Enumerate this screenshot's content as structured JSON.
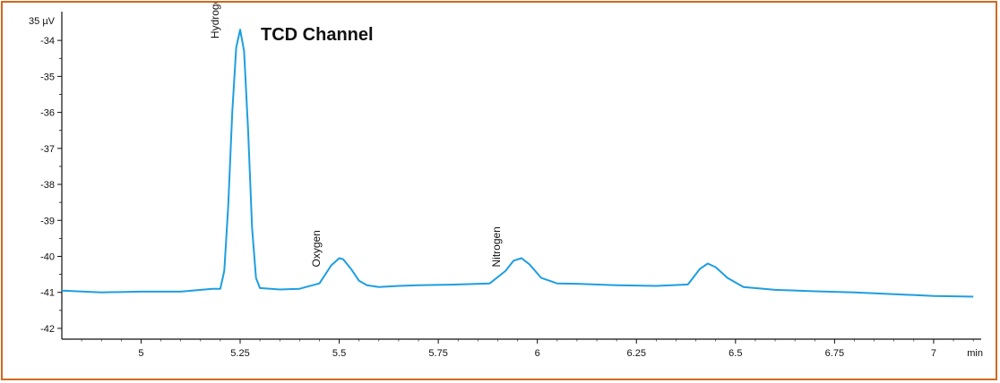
{
  "chart_data": {
    "type": "line",
    "title": "TCD Channel",
    "unit_label": "35 µV",
    "x_unit": "min",
    "xlim": [
      4.8,
      7.12
    ],
    "ylim": [
      -42.3,
      -33.3
    ],
    "x_ticks": [
      {
        "value": 5,
        "label": "5"
      },
      {
        "value": 5.25,
        "label": "5.25"
      },
      {
        "value": 5.5,
        "label": "5.5"
      },
      {
        "value": 5.75,
        "label": "5.75"
      },
      {
        "value": 6,
        "label": "6"
      },
      {
        "value": 6.25,
        "label": "6.25"
      },
      {
        "value": 6.5,
        "label": "6.5"
      },
      {
        "value": 6.75,
        "label": "6.75"
      },
      {
        "value": 7,
        "label": "7"
      }
    ],
    "y_ticks": [
      {
        "value": -34,
        "label": "-34"
      },
      {
        "value": -35,
        "label": "-35"
      },
      {
        "value": -36,
        "label": "-36"
      },
      {
        "value": -37,
        "label": "-37"
      },
      {
        "value": -38,
        "label": "-38"
      },
      {
        "value": -39,
        "label": "-39"
      },
      {
        "value": -40,
        "label": "-40"
      },
      {
        "value": -41,
        "label": "-41"
      },
      {
        "value": -42,
        "label": "-42"
      }
    ],
    "series": [
      {
        "color": "#1e9ee0",
        "x": [
          4.8,
          4.9,
          5.0,
          5.1,
          5.18,
          5.2,
          5.21,
          5.22,
          5.23,
          5.24,
          5.25,
          5.26,
          5.27,
          5.28,
          5.29,
          5.3,
          5.35,
          5.4,
          5.45,
          5.48,
          5.5,
          5.51,
          5.53,
          5.55,
          5.57,
          5.6,
          5.65,
          5.7,
          5.8,
          5.88,
          5.92,
          5.94,
          5.96,
          5.98,
          6.01,
          6.05,
          6.1,
          6.2,
          6.3,
          6.38,
          6.41,
          6.43,
          6.45,
          6.48,
          6.52,
          6.6,
          6.7,
          6.8,
          6.9,
          7.0,
          7.1
        ],
        "y": [
          -40.95,
          -41.0,
          -40.98,
          -40.98,
          -40.9,
          -40.9,
          -40.4,
          -38.6,
          -36.0,
          -34.2,
          -33.7,
          -34.3,
          -36.5,
          -39.2,
          -40.6,
          -40.88,
          -40.92,
          -40.9,
          -40.75,
          -40.25,
          -40.05,
          -40.08,
          -40.35,
          -40.68,
          -40.8,
          -40.85,
          -40.82,
          -40.8,
          -40.78,
          -40.75,
          -40.4,
          -40.12,
          -40.05,
          -40.22,
          -40.6,
          -40.75,
          -40.76,
          -40.8,
          -40.82,
          -40.78,
          -40.35,
          -40.2,
          -40.3,
          -40.6,
          -40.85,
          -40.93,
          -40.97,
          -41.0,
          -41.05,
          -41.1,
          -41.12
        ]
      }
    ],
    "annotations": [
      {
        "text": "Hydrogen",
        "x": 5.25,
        "y": -33.7
      },
      {
        "text": "Oxygen",
        "x": 5.505,
        "y": -40.05
      },
      {
        "text": "Nitrogen",
        "x": 5.96,
        "y": -40.05
      }
    ]
  }
}
